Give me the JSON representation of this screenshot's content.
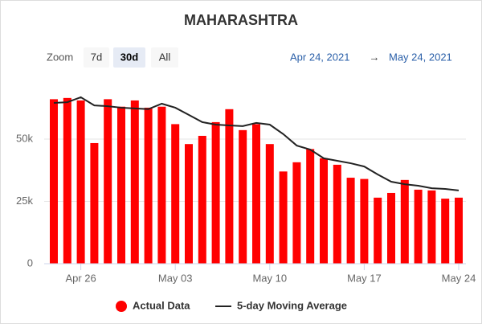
{
  "chart_data": {
    "type": "bar_line",
    "title": "MAHARASHTRA",
    "categories": [
      null,
      null,
      "Apr 26",
      null,
      null,
      null,
      null,
      null,
      null,
      "May 03",
      null,
      null,
      null,
      null,
      null,
      null,
      "May 10",
      null,
      null,
      null,
      null,
      null,
      null,
      "May 17",
      null,
      null,
      null,
      null,
      null,
      null,
      "May 24"
    ],
    "series": [
      {
        "name": "Actual Data",
        "type": "bar",
        "color": "#ff0000",
        "values": [
          66000,
          66500,
          65500,
          48400,
          66000,
          63000,
          65500,
          62600,
          63000,
          56000,
          48000,
          51300,
          56800,
          62000,
          53600,
          56000,
          48000,
          37000,
          40700,
          46000,
          42300,
          39700,
          34500,
          34000,
          26500,
          28400,
          33600,
          29700,
          29400,
          26100,
          26500
        ]
      },
      {
        "name": "5-day Moving Average",
        "type": "line",
        "color": "#222222",
        "values": [
          64500,
          64800,
          66800,
          63500,
          63200,
          62600,
          62300,
          62000,
          64200,
          62600,
          59700,
          56800,
          55800,
          55500,
          55200,
          56500,
          55800,
          52000,
          47400,
          45800,
          42300,
          41300,
          40300,
          39000,
          35800,
          32900,
          31900,
          31300,
          30300,
          30000,
          29400
        ]
      }
    ],
    "ylim": [
      0,
      70000
    ],
    "yticks": [
      0,
      {
        "value": 25000,
        "label": "25k"
      },
      {
        "value": 50000,
        "label": "50k"
      }
    ],
    "grid": true
  },
  "range_selector": {
    "label": "Zoom",
    "buttons": [
      "7d",
      "30d",
      "All"
    ],
    "selected": 1,
    "from": "Apr 24, 2021",
    "separator": "→",
    "to": "May 24, 2021"
  }
}
